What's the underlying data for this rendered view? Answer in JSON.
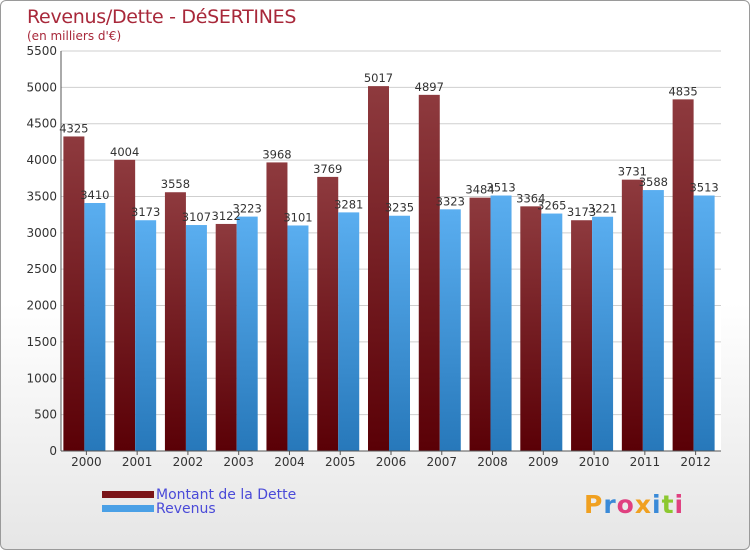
{
  "title": "Revenus/Dette - DéSERTINES",
  "subtitle": "(en milliers d'€)",
  "logo_text": "Proxiti",
  "colors": {
    "dette": "#6b0a10",
    "dette_light": "#8e3a3e",
    "revenus": "#2e86c8",
    "revenus_light": "#5aaef0",
    "title": "#a8283a",
    "legend_text": "#4a4ad8"
  },
  "legend": [
    {
      "label": "Montant de la Dette",
      "color": "#7a1418"
    },
    {
      "label": "Revenus",
      "color": "#4aa0e6"
    }
  ],
  "chart_data": {
    "type": "bar",
    "title": "Revenus/Dette - DéSERTINES",
    "ylabel": "(en milliers d'€)",
    "xlabel": "",
    "ylim": [
      0,
      5500
    ],
    "yticks": [
      0,
      500,
      1000,
      1500,
      2000,
      2500,
      3000,
      3500,
      4000,
      4500,
      5000,
      5500
    ],
    "grid": true,
    "categories": [
      "2000",
      "2001",
      "2002",
      "2003",
      "2004",
      "2005",
      "2006",
      "2007",
      "2008",
      "2009",
      "2010",
      "2011",
      "2012"
    ],
    "series": [
      {
        "name": "Montant de la Dette",
        "values": [
          4325,
          4004,
          3558,
          3122,
          3968,
          3769,
          5017,
          4897,
          3484,
          3364,
          3173,
          3731,
          4835
        ]
      },
      {
        "name": "Revenus",
        "values": [
          3410,
          3173,
          3107,
          3223,
          3101,
          3281,
          3235,
          3323,
          3513,
          3265,
          3221,
          3588,
          3513
        ]
      }
    ]
  }
}
